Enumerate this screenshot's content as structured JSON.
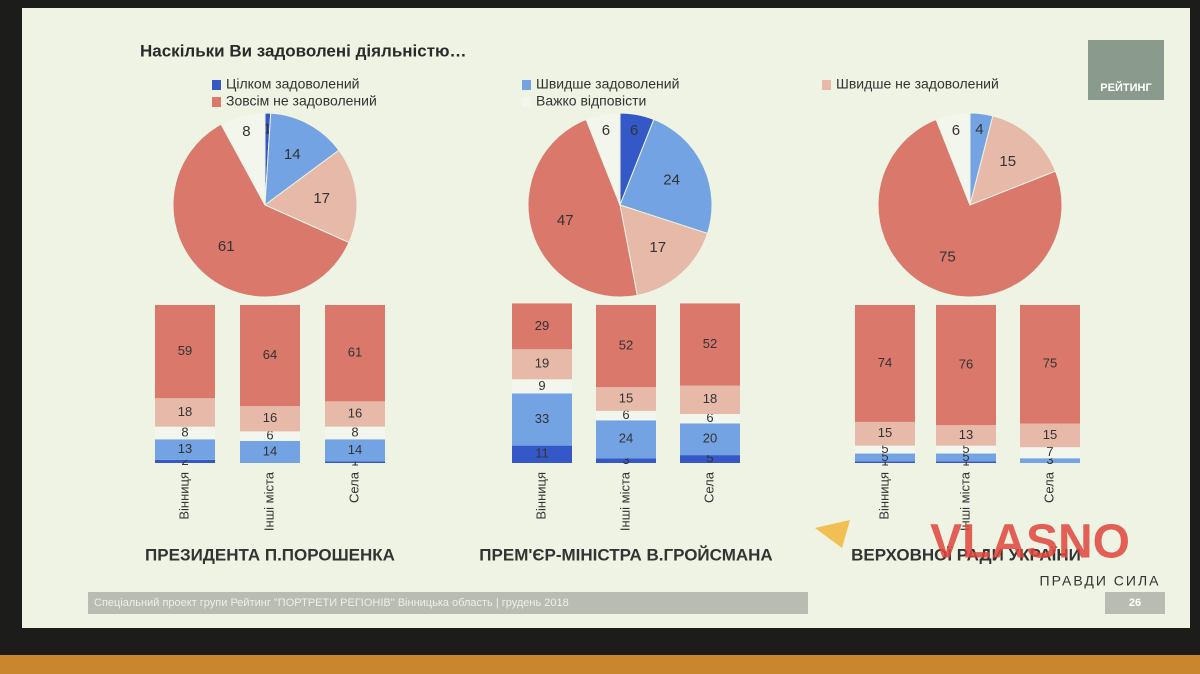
{
  "slide": {
    "title": "Наскільки Ви задоволені діяльністю…",
    "logo": "РЕЙТИНГ",
    "footer": "Спеціальний проект групи Рейтинг \"ПОРТРЕТИ РЕГІОНІВ\" Вінницька область | грудень 2018",
    "page": "26",
    "watermark": "VLASNO",
    "watermark_tagline": "ПРАВДИ СИЛА"
  },
  "legend": {
    "items": [
      {
        "name": "Цілком задоволений",
        "color": "#3558c8"
      },
      {
        "name": "Швидше задоволений",
        "color": "#73a3e2"
      },
      {
        "name": "Швидше не задоволений",
        "color": "#e6b9a8"
      },
      {
        "name": "Зовсім не задоволений",
        "color": "#d9786b"
      },
      {
        "name": "Важко відповісти",
        "color": "#f3f6ec"
      }
    ]
  },
  "chart_data": [
    {
      "type": "pie",
      "values": [
        1,
        14,
        17,
        61,
        8
      ]
    },
    {
      "type": "bar",
      "stacked": true,
      "title": "ПРЕЗИДЕНТА П.ПОРОШЕНКА",
      "categories": [
        "Вінниця",
        "Інші міста",
        "Села"
      ],
      "series": [
        {
          "values": [
            2,
            0,
            1
          ]
        },
        {
          "values": [
            13,
            14,
            14
          ]
        },
        {
          "values": [
            18,
            16,
            16
          ]
        },
        {
          "values": [
            59,
            64,
            61
          ]
        },
        {
          "values": [
            8,
            6,
            8
          ]
        }
      ]
    },
    {
      "type": "pie",
      "values": [
        6,
        24,
        17,
        47,
        6
      ]
    },
    {
      "type": "bar",
      "stacked": true,
      "title": "ПРЕМ'ЄР-МІНІСТРА В.ГРОЙСМАНА",
      "categories": [
        "Вінниця",
        "Інші міста",
        "Села"
      ],
      "series": [
        {
          "values": [
            11,
            3,
            5
          ]
        },
        {
          "values": [
            33,
            24,
            20
          ]
        },
        {
          "values": [
            19,
            15,
            18
          ]
        },
        {
          "values": [
            29,
            52,
            52
          ]
        },
        {
          "values": [
            9,
            6,
            6
          ]
        }
      ]
    },
    {
      "type": "pie",
      "values": [
        0,
        4,
        15,
        75,
        6
      ]
    },
    {
      "type": "bar",
      "stacked": true,
      "title": "ВЕРХОВНОЇ РАДИ УКРАЇНИ",
      "categories": [
        "Вінниця",
        "Інші міста",
        "Села"
      ],
      "series": [
        {
          "values": [
            1,
            1,
            0
          ]
        },
        {
          "values": [
            5,
            5,
            3
          ]
        },
        {
          "values": [
            15,
            13,
            15
          ]
        },
        {
          "values": [
            74,
            76,
            75
          ]
        },
        {
          "values": [
            5,
            5,
            7
          ]
        }
      ]
    }
  ]
}
